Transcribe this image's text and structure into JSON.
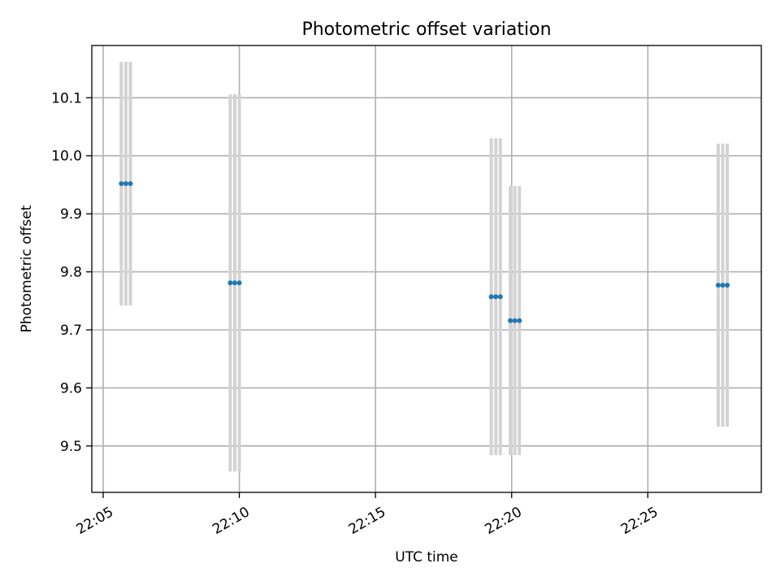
{
  "chart_data": {
    "type": "scatter",
    "title": "Photometric offset variation",
    "xlabel": "UTC time",
    "ylabel": "Photometric offset",
    "xlim": [
      "22:04:35",
      "22:29:10"
    ],
    "ylim": [
      9.42,
      10.19
    ],
    "x_ticks": [
      "22:05",
      "22:10",
      "22:15",
      "22:20",
      "22:25"
    ],
    "y_ticks": [
      9.5,
      9.6,
      9.7,
      9.8,
      9.9,
      10.0,
      10.1
    ],
    "grid": true,
    "series": [
      {
        "marker_color": "#1f77b4",
        "errorbar_color": "#d3d3d3",
        "points": [
          {
            "t": "22:05:40",
            "y": 9.952,
            "err": 0.21
          },
          {
            "t": "22:05:50",
            "y": 9.952,
            "err": 0.21
          },
          {
            "t": "22:06:00",
            "y": 9.952,
            "err": 0.21
          },
          {
            "t": "22:09:40",
            "y": 9.781,
            "err": 0.325
          },
          {
            "t": "22:09:50",
            "y": 9.781,
            "err": 0.325
          },
          {
            "t": "22:10:00",
            "y": 9.781,
            "err": 0.325
          },
          {
            "t": "22:19:15",
            "y": 9.757,
            "err": 0.273
          },
          {
            "t": "22:19:25",
            "y": 9.757,
            "err": 0.273
          },
          {
            "t": "22:19:35",
            "y": 9.757,
            "err": 0.273
          },
          {
            "t": "22:19:57",
            "y": 9.716,
            "err": 0.232
          },
          {
            "t": "22:20:07",
            "y": 9.716,
            "err": 0.232
          },
          {
            "t": "22:20:17",
            "y": 9.716,
            "err": 0.232
          },
          {
            "t": "22:27:35",
            "y": 9.777,
            "err": 0.244
          },
          {
            "t": "22:27:45",
            "y": 9.777,
            "err": 0.244
          },
          {
            "t": "22:27:55",
            "y": 9.777,
            "err": 0.244
          }
        ]
      }
    ]
  }
}
